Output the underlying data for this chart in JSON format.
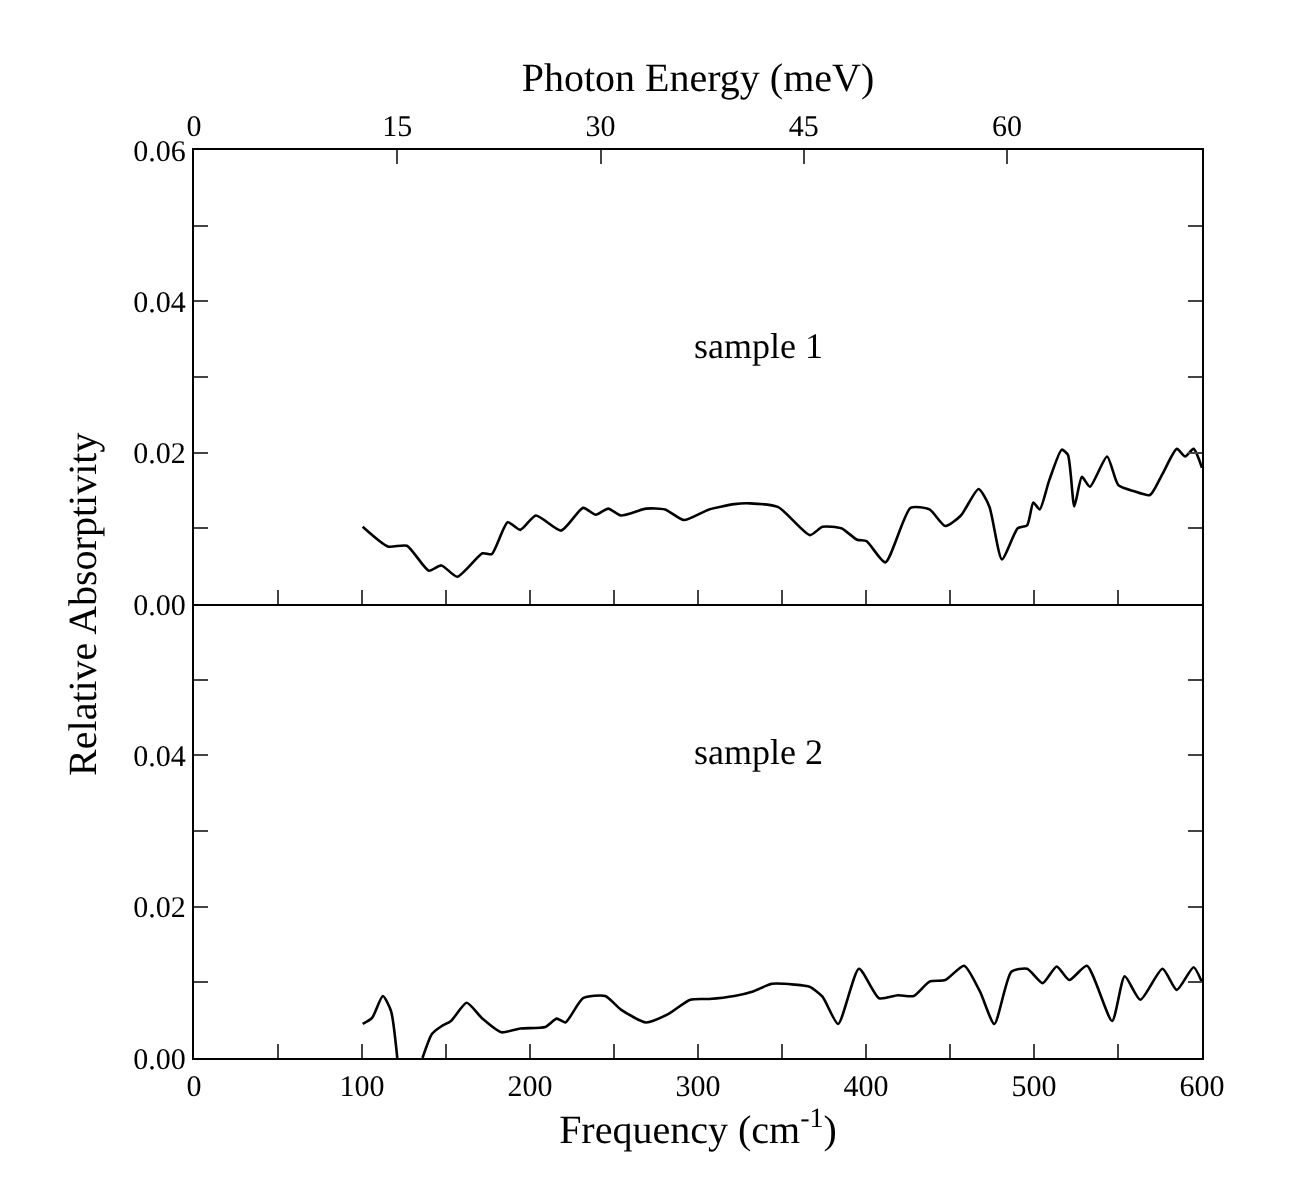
{
  "chart_data": [
    {
      "type": "line",
      "x2label": "Photon Energy (meV)",
      "annotations": [
        "sample 1"
      ],
      "x": [
        100.4,
        115.4,
        126.7,
        139.8,
        147.3,
        156.7,
        171.7,
        177.3,
        186.7,
        194.2,
        203.5,
        218.5,
        231.6,
        239.1,
        246.6,
        254.1,
        269.1,
        280.4,
        291.6,
        306.6,
        321.6,
        331,
        347.8,
        366.6,
        374.1,
        385.3,
        394.7,
        400.3,
        411.5,
        426.5,
        437.8,
        447.2,
        456.5,
        467,
        473.4,
        480.9,
        490.3,
        495.9,
        499.6,
        503.4,
        509,
        516.5,
        520.2,
        524,
        528.5,
        533.3,
        543.5,
        550.2,
        559.6,
        569,
        576.5,
        585,
        590,
        595,
        600
      ],
      "series": [
        {
          "color": "#000000",
          "values": [
            0.0102,
            0.0076,
            0.0077,
            0.0044,
            0.0051,
            0.0036,
            0.0067,
            0.0066,
            0.0108,
            0.0098,
            0.0117,
            0.0097,
            0.0127,
            0.0118,
            0.0126,
            0.0117,
            0.0126,
            0.0125,
            0.0111,
            0.0125,
            0.0132,
            0.0133,
            0.0128,
            0.0091,
            0.0102,
            0.01,
            0.0085,
            0.0083,
            0.0055,
            0.0127,
            0.0125,
            0.0103,
            0.0117,
            0.0152,
            0.0129,
            0.0059,
            0.01,
            0.0104,
            0.0134,
            0.0125,
            0.0163,
            0.0204,
            0.0197,
            0.0129,
            0.0168,
            0.0155,
            0.0195,
            0.0157,
            0.0149,
            0.0144,
            0.0172,
            0.0205,
            0.0195,
            0.0205,
            0.018
          ]
        }
      ],
      "xlim": [
        0,
        600
      ],
      "xticks": [
        {
          "value": 0,
          "label": null
        },
        {
          "value": 50,
          "label": null
        },
        {
          "value": 100,
          "label": null
        },
        {
          "value": 150,
          "label": null
        },
        {
          "value": 200,
          "label": null
        },
        {
          "value": 250,
          "label": null
        },
        {
          "value": 300,
          "label": null
        },
        {
          "value": 350,
          "label": null
        },
        {
          "value": 400,
          "label": null
        },
        {
          "value": 450,
          "label": null
        },
        {
          "value": 500,
          "label": null
        },
        {
          "value": 550,
          "label": null
        },
        {
          "value": 600,
          "label": null
        }
      ],
      "x2lim": [
        0,
        74.39
      ],
      "x2ticks": [
        0,
        15,
        30,
        45,
        60
      ],
      "ylim": [
        0,
        0.06
      ],
      "yticks": [
        {
          "value": 0,
          "label": "0.00"
        },
        {
          "value": 0.01,
          "label": null
        },
        {
          "value": 0.02,
          "label": "0.02"
        },
        {
          "value": 0.03,
          "label": null
        },
        {
          "value": 0.04,
          "label": "0.04"
        },
        {
          "value": 0.05,
          "label": null
        },
        {
          "value": 0.06,
          "label": "0.06"
        }
      ],
      "tick_labels": "y",
      "grid": false,
      "line_style": "solid"
    },
    {
      "type": "line",
      "xlabel": "Frequency (cm$^{-1}$)",
      "ylabel": "Relative Absorptivity",
      "annotations": [
        "sample 2"
      ],
      "x": [
        100.4,
        106,
        112.4,
        117.3,
        121,
        128,
        136,
        141.7,
        147.3,
        153,
        162.3,
        171.7,
        182.9,
        194.2,
        209.1,
        215.9,
        221.1,
        231.6,
        244.8,
        254.1,
        269.1,
        282.2,
        295.4,
        306.6,
        321.6,
        332.8,
        344,
        357.2,
        366.6,
        374.1,
        383.4,
        395.8,
        407.8,
        419,
        428.4,
        437.8,
        447.2,
        458.4,
        467.8,
        476.4,
        486.5,
        495.9,
        505.2,
        513.5,
        521,
        531.5,
        546.5,
        554,
        563.3,
        576.5,
        585,
        595,
        600
      ],
      "series": [
        {
          "color": "#000000",
          "values": [
            0.0045,
            0.0053,
            0.0082,
            0.0062,
            0.0,
            null,
            0.0,
            0.0032,
            0.0042,
            0.0049,
            0.0073,
            0.0052,
            0.0034,
            0.0039,
            0.0041,
            0.0052,
            0.0047,
            0.0079,
            0.0082,
            0.0064,
            0.0047,
            0.0058,
            0.0077,
            0.0078,
            0.0082,
            0.0088,
            0.0098,
            0.0097,
            0.0094,
            0.0081,
            0.0045,
            0.0118,
            0.0079,
            0.0083,
            0.0082,
            0.0101,
            0.0103,
            0.0122,
            0.0088,
            0.0045,
            0.0114,
            0.0118,
            0.0099,
            0.0121,
            0.0103,
            0.0122,
            0.0049,
            0.0108,
            0.0077,
            0.0118,
            0.009,
            0.012,
            0.01
          ]
        }
      ],
      "xlim": [
        0,
        600
      ],
      "xticks": [
        0,
        {
          "value": 50,
          "label": null
        },
        100,
        {
          "value": 150,
          "label": null
        },
        200,
        {
          "value": 250,
          "label": null
        },
        300,
        {
          "value": 350,
          "label": null
        },
        400,
        {
          "value": 450,
          "label": null
        },
        500,
        {
          "value": 550,
          "label": null
        },
        600
      ],
      "ylim": [
        0,
        0.06
      ],
      "yticks": [
        {
          "value": 0,
          "label": "0.00"
        },
        {
          "value": 0.01,
          "label": null
        },
        {
          "value": 0.02,
          "label": "0.02"
        },
        {
          "value": 0.03,
          "label": null
        },
        {
          "value": 0.04,
          "label": "0.04"
        },
        {
          "value": 0.05,
          "label": null
        },
        {
          "value": 0.06,
          "label": null
        }
      ],
      "grid": false,
      "line_style": "solid"
    }
  ]
}
